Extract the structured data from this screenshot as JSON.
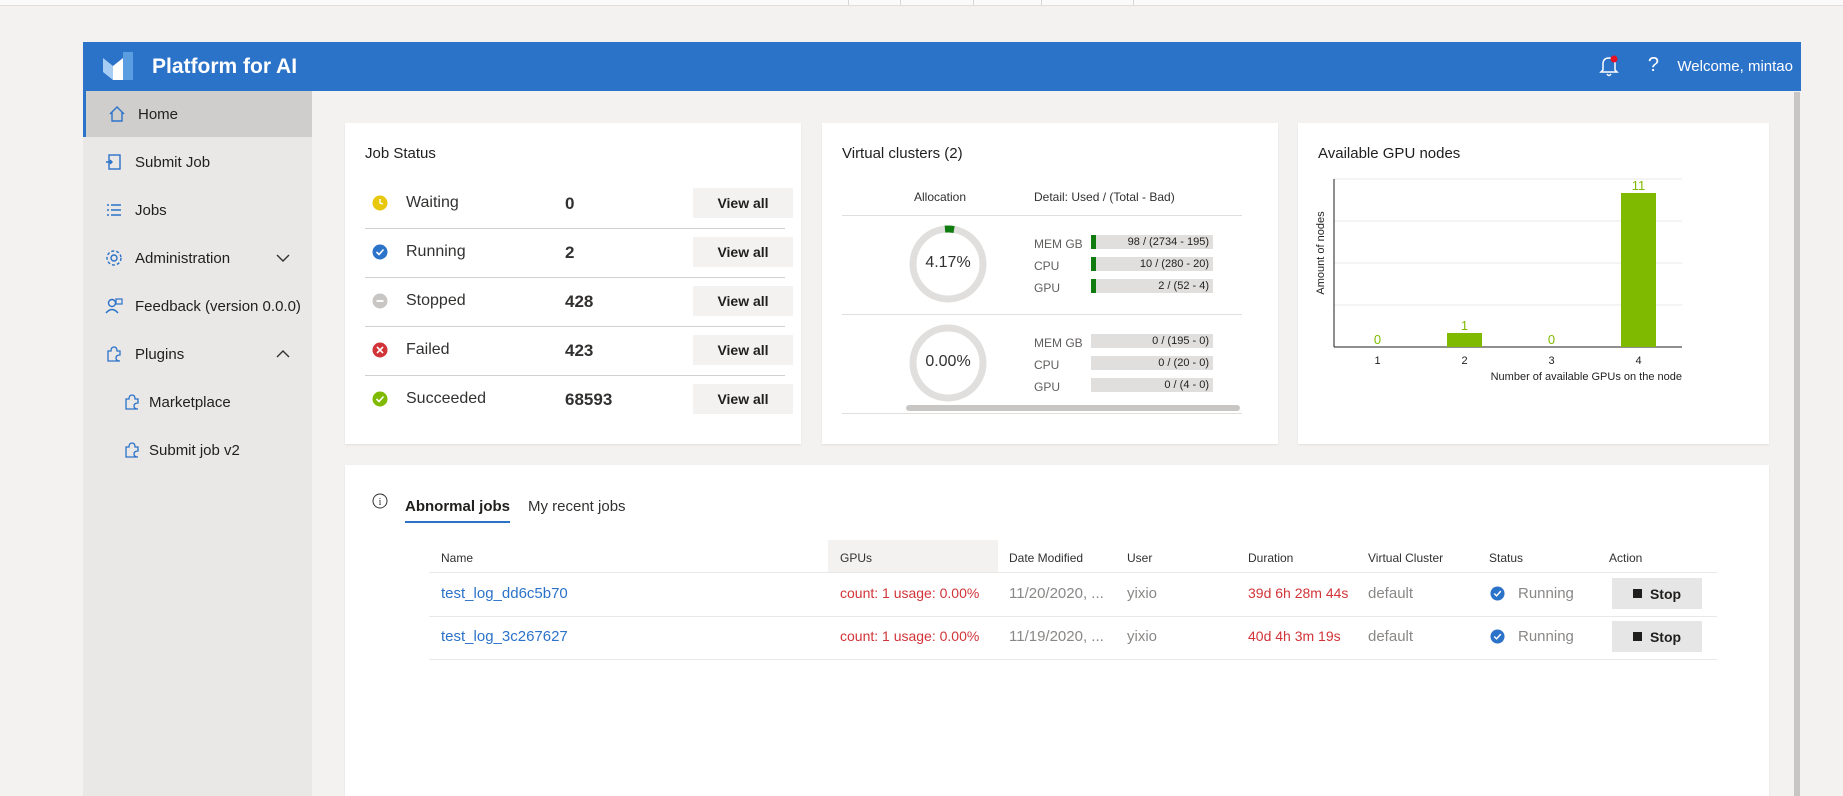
{
  "header": {
    "title": "Platform for AI",
    "help_symbol": "?",
    "welcome": "Welcome, mintao"
  },
  "sidebar": {
    "items": [
      {
        "label": "Home",
        "icon": "home-icon",
        "active": true
      },
      {
        "label": "Submit Job",
        "icon": "submit-job-icon"
      },
      {
        "label": "Jobs",
        "icon": "list-icon"
      },
      {
        "label": "Administration",
        "icon": "gear-icon",
        "expanded": false
      },
      {
        "label": "Feedback (version 0.0.0)",
        "icon": "feedback-icon"
      },
      {
        "label": "Plugins",
        "icon": "plugin-icon",
        "expanded": true
      },
      {
        "label": "Marketplace",
        "icon": "plugin-icon"
      },
      {
        "label": "Submit job v2",
        "icon": "plugin-icon"
      }
    ]
  },
  "job_status": {
    "title": "Job Status",
    "view_all_label": "View all",
    "rows": [
      {
        "name": "Waiting",
        "count": "0",
        "color": "#e8c80c"
      },
      {
        "name": "Running",
        "count": "2",
        "color": "#2b72c9"
      },
      {
        "name": "Stopped",
        "count": "428",
        "color": "#c8c6c4"
      },
      {
        "name": "Failed",
        "count": "423",
        "color": "#d13438"
      },
      {
        "name": "Succeeded",
        "count": "68593",
        "color": "#7fba00"
      }
    ]
  },
  "virtual_clusters": {
    "title": "Virtual clusters (2)",
    "allocation_header": "Allocation",
    "detail_header": "Detail: Used / (Total - Bad)",
    "clusters": [
      {
        "allocation": "4.17%",
        "fraction": 0.0417,
        "resources": [
          {
            "label": "MEM GB",
            "value": "98 / (2734 - 195)",
            "fraction": 0.04
          },
          {
            "label": "CPU",
            "value": "10 / (280 - 20)",
            "fraction": 0.04
          },
          {
            "label": "GPU",
            "value": "2 / (52 - 4)",
            "fraction": 0.04
          }
        ]
      },
      {
        "allocation": "0.00%",
        "fraction": 0,
        "resources": [
          {
            "label": "MEM GB",
            "value": "0 / (195 - 0)",
            "fraction": 0
          },
          {
            "label": "CPU",
            "value": "0 / (20 - 0)",
            "fraction": 0
          },
          {
            "label": "GPU",
            "value": "0 / (4 - 0)",
            "fraction": 0
          }
        ]
      }
    ]
  },
  "gpu_nodes": {
    "title": "Available GPU nodes",
    "chart_data": {
      "type": "bar",
      "categories": [
        "1",
        "2",
        "3",
        "4"
      ],
      "values": [
        0,
        1,
        0,
        11
      ],
      "xlabel": "Number of available GPUs on the node",
      "ylabel": "Amount of nodes",
      "ylim": [
        0,
        12
      ],
      "grid": true,
      "bar_color": "#7fba00"
    }
  },
  "jobs_panel": {
    "info_symbol": "i",
    "tabs": [
      {
        "label": "Abnormal jobs",
        "active": true
      },
      {
        "label": "My recent jobs"
      }
    ],
    "columns": [
      "Name",
      "GPUs",
      "Date Modified",
      "User",
      "Duration",
      "Virtual Cluster",
      "Status",
      "Action"
    ],
    "rows": [
      {
        "name": "test_log_dd6c5b70",
        "gpus": "count: 1 usage: 0.00%",
        "date": "11/20/2020, ...",
        "user": "yixio",
        "duration": "39d 6h 28m 44s",
        "vc": "default",
        "status": "Running",
        "action": "Stop"
      },
      {
        "name": "test_log_3c267627",
        "gpus": "count: 1 usage: 0.00%",
        "date": "11/19/2020, ...",
        "user": "yixio",
        "duration": "40d 4h 3m 19s",
        "vc": "default",
        "status": "Running",
        "action": "Stop"
      }
    ]
  }
}
